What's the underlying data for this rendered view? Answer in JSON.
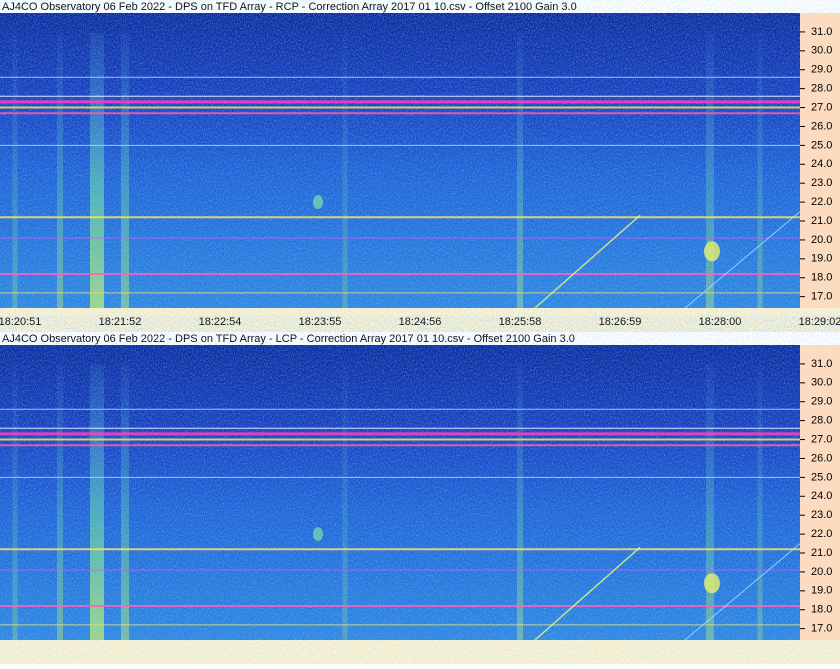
{
  "chart_data": [
    {
      "type": "spectrogram",
      "title": "AJ4CO Observatory 06 Feb 2022  -  DPS on TFD Array  -  RCP  -  Correction Array 2017 01 10.csv  -  Offset 2100  Gain 3.0",
      "ylim": [
        16.4,
        32.0
      ],
      "yticks": [
        {
          "value": 17,
          "label": "17.0"
        },
        {
          "value": 18,
          "label": "18.0"
        },
        {
          "value": 19,
          "label": "19.0"
        },
        {
          "value": 20,
          "label": "20.0"
        },
        {
          "value": 21,
          "label": "21.0"
        },
        {
          "value": 22,
          "label": "22.0"
        },
        {
          "value": 23,
          "label": "23.0"
        },
        {
          "value": 24,
          "label": "24.0"
        },
        {
          "value": 25,
          "label": "25.0"
        },
        {
          "value": 26,
          "label": "26.0"
        },
        {
          "value": 27,
          "label": "27.0"
        },
        {
          "value": 28,
          "label": "28.0"
        },
        {
          "value": 29,
          "label": "29.0"
        },
        {
          "value": 30,
          "label": "30.0"
        },
        {
          "value": 31,
          "label": "31.0"
        }
      ],
      "categories": [
        "18:20:51",
        "18:21:52",
        "18:22:54",
        "18:23:55",
        "18:24:56",
        "18:25:58",
        "18:26:59",
        "18:28:00",
        "18:29:02"
      ]
    },
    {
      "type": "spectrogram",
      "title": "AJ4CO Observatory 06 Feb 2022  -  DPS on TFD Array  -  LCP  -  Correction Array 2017 01 10.csv  -  Offset 2100  Gain 3.0",
      "ylim": [
        16.4,
        32.0
      ],
      "yticks": [
        {
          "value": 17,
          "label": "17.0"
        },
        {
          "value": 18,
          "label": "18.0"
        },
        {
          "value": 19,
          "label": "19.0"
        },
        {
          "value": 20,
          "label": "20.0"
        },
        {
          "value": 21,
          "label": "21.0"
        },
        {
          "value": 22,
          "label": "22.0"
        },
        {
          "value": 23,
          "label": "23.0"
        },
        {
          "value": 24,
          "label": "24.0"
        },
        {
          "value": 25,
          "label": "25.0"
        },
        {
          "value": 26,
          "label": "26.0"
        },
        {
          "value": 27,
          "label": "27.0"
        },
        {
          "value": 28,
          "label": "28.0"
        },
        {
          "value": 29,
          "label": "29.0"
        },
        {
          "value": 30,
          "label": "30.0"
        },
        {
          "value": 31,
          "label": "31.0"
        }
      ]
    }
  ]
}
